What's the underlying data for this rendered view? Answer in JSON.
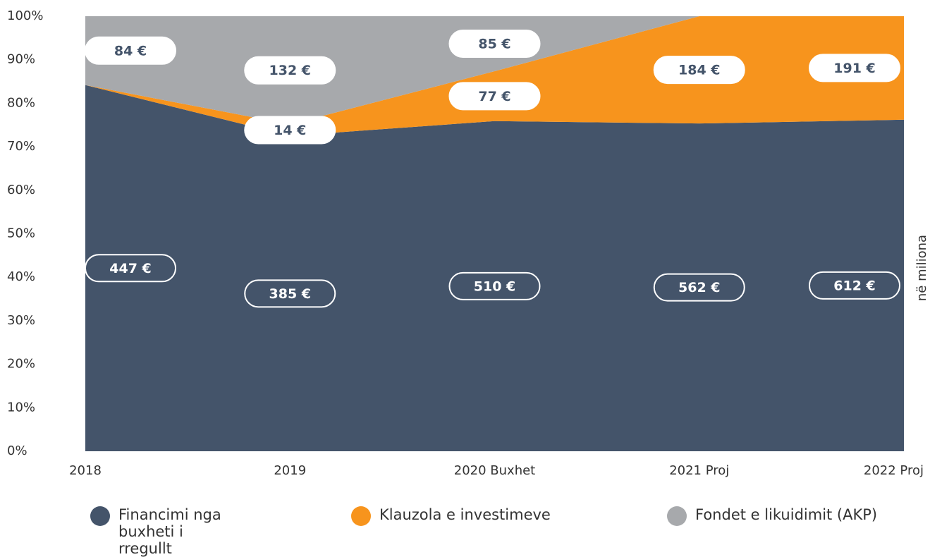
{
  "chart_data": {
    "type": "area",
    "stacked": "percent",
    "categories": [
      "2018",
      "2019",
      "2020 Buxhet",
      "2021 Proj",
      "2022 Proj"
    ],
    "series": [
      {
        "name": "Financimi nga buxheti i rregullt",
        "color": "#44546a",
        "values": [
          447,
          385,
          510,
          562,
          612
        ],
        "value_labels": [
          "447 €",
          "385 €",
          "510 €",
          "562 €",
          "612 €"
        ]
      },
      {
        "name": "Klauzola e investimeve",
        "color": "#f7941d",
        "values": [
          0,
          14,
          77,
          184,
          191
        ],
        "value_labels": [
          null,
          "14 €",
          "77 €",
          "184 €",
          "191 €"
        ]
      },
      {
        "name": "Fondet e likuidimit (AKP)",
        "color": "#a7a9ac",
        "values": [
          84,
          132,
          85,
          0,
          0
        ],
        "value_labels": [
          "84 €",
          "132 €",
          "85 €",
          null,
          null
        ]
      }
    ],
    "ylim": [
      0,
      100
    ],
    "yticks": [
      {
        "value": 0,
        "label": "0%"
      },
      {
        "value": 10,
        "label": "10%"
      },
      {
        "value": 20,
        "label": "20%"
      },
      {
        "value": 30,
        "label": "30%"
      },
      {
        "value": 40,
        "label": "40%"
      },
      {
        "value": 50,
        "label": "50%"
      },
      {
        "value": 60,
        "label": "60%"
      },
      {
        "value": 70,
        "label": "70%"
      },
      {
        "value": 80,
        "label": "80%"
      },
      {
        "value": 90,
        "label": "90%"
      },
      {
        "value": 100,
        "label": "100%"
      }
    ],
    "y2_label": "në miliona",
    "legend": "bottom"
  }
}
